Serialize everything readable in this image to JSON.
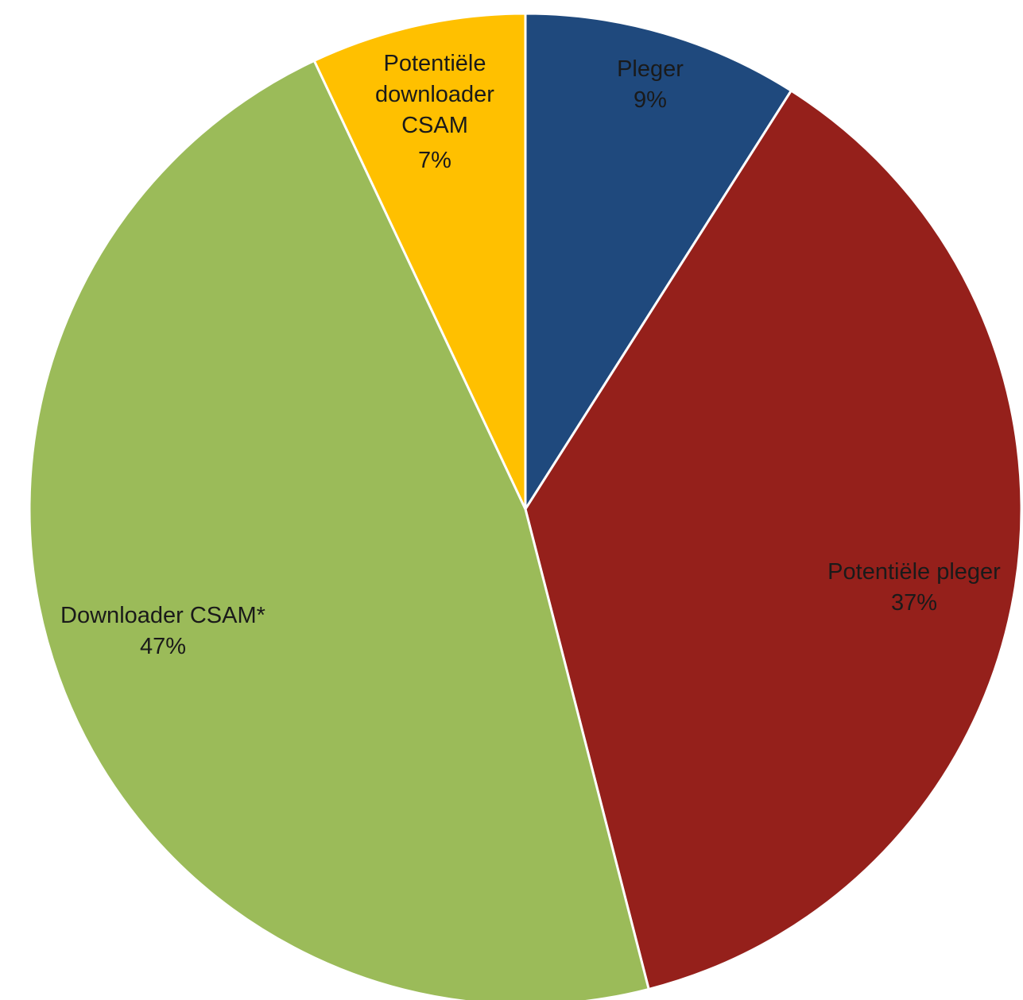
{
  "chart_data": {
    "type": "pie",
    "start_angle_deg": 0,
    "direction": "clockwise",
    "slices": [
      {
        "label": "Pleger",
        "value": 9,
        "percent_label": "9%",
        "color": "#1f497d"
      },
      {
        "label": "Potentiële pleger",
        "value": 37,
        "percent_label": "37%",
        "color": "#95201b"
      },
      {
        "label": "Downloader CSAM*",
        "value": 47,
        "percent_label": "47%",
        "color": "#9bbb59"
      },
      {
        "label": "Potentiële downloader CSAM",
        "value": 7,
        "percent_label": "7%",
        "color": "#ffc000"
      }
    ]
  }
}
